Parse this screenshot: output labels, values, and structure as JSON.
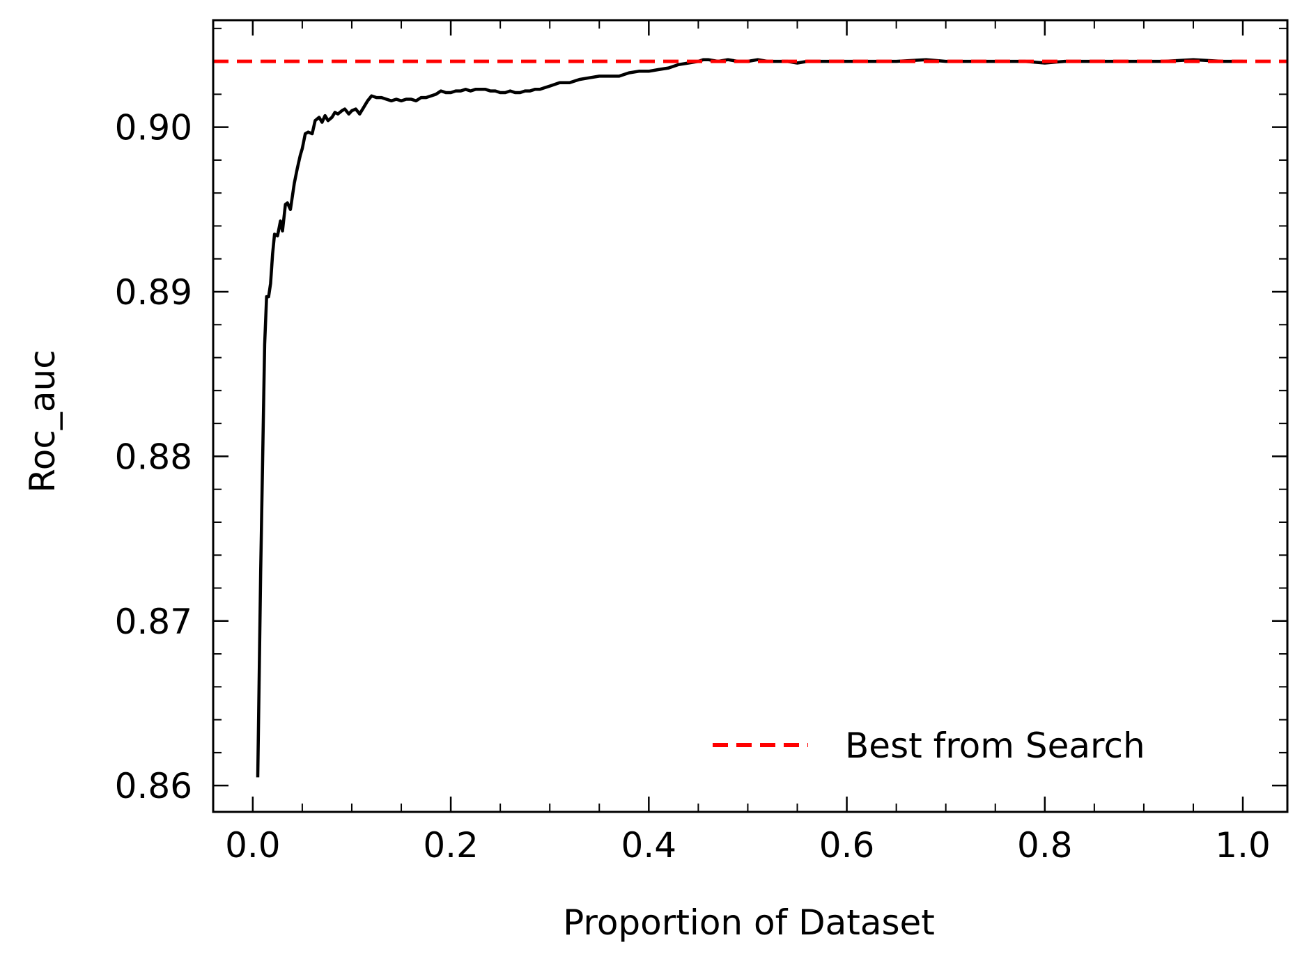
{
  "chart_data": {
    "type": "line",
    "xlabel": "Proportion of Dataset",
    "ylabel": "Roc_auc",
    "xlim": [
      -0.04,
      1.045
    ],
    "ylim": [
      0.8584,
      0.9065
    ],
    "xticks": [
      0.0,
      0.2,
      0.4,
      0.6,
      0.8,
      1.0
    ],
    "xtick_labels": [
      "0.0",
      "0.2",
      "0.4",
      "0.6",
      "0.8",
      "1.0"
    ],
    "yticks": [
      0.86,
      0.87,
      0.88,
      0.89,
      0.9
    ],
    "ytick_labels": [
      "0.86",
      "0.87",
      "0.88",
      "0.89",
      "0.90"
    ],
    "grid": false,
    "legend_position": "lower-right",
    "series": [
      {
        "kind": "line",
        "color": "#000000",
        "x": [
          0.005,
          0.008,
          0.012,
          0.014,
          0.016,
          0.018,
          0.02,
          0.022,
          0.025,
          0.028,
          0.03,
          0.033,
          0.035,
          0.038,
          0.04,
          0.042,
          0.045,
          0.048,
          0.05,
          0.053,
          0.056,
          0.06,
          0.063,
          0.067,
          0.07,
          0.073,
          0.076,
          0.08,
          0.083,
          0.086,
          0.09,
          0.093,
          0.097,
          0.1,
          0.104,
          0.108,
          0.112,
          0.116,
          0.12,
          0.125,
          0.13,
          0.135,
          0.14,
          0.145,
          0.15,
          0.155,
          0.16,
          0.165,
          0.17,
          0.175,
          0.18,
          0.185,
          0.19,
          0.195,
          0.2,
          0.205,
          0.21,
          0.215,
          0.22,
          0.225,
          0.23,
          0.235,
          0.24,
          0.245,
          0.25,
          0.255,
          0.26,
          0.265,
          0.27,
          0.275,
          0.28,
          0.285,
          0.29,
          0.295,
          0.3,
          0.31,
          0.32,
          0.33,
          0.34,
          0.35,
          0.36,
          0.37,
          0.38,
          0.39,
          0.4,
          0.41,
          0.42,
          0.43,
          0.44,
          0.45,
          0.455,
          0.46,
          0.47,
          0.48,
          0.49,
          0.5,
          0.51,
          0.52,
          0.53,
          0.54,
          0.55,
          0.56,
          0.58,
          0.6,
          0.62,
          0.65,
          0.68,
          0.7,
          0.72,
          0.75,
          0.78,
          0.8,
          0.82,
          0.85,
          0.88,
          0.9,
          0.92,
          0.95,
          0.98,
          1.0
        ],
        "y": [
          0.8605,
          0.873,
          0.8868,
          0.8897,
          0.8897,
          0.8905,
          0.8923,
          0.8935,
          0.8934,
          0.8943,
          0.8937,
          0.8953,
          0.8954,
          0.895,
          0.8958,
          0.8966,
          0.8975,
          0.8983,
          0.8987,
          0.8996,
          0.8997,
          0.8996,
          0.9004,
          0.9006,
          0.9003,
          0.9007,
          0.9004,
          0.9006,
          0.9009,
          0.9008,
          0.901,
          0.9011,
          0.9008,
          0.901,
          0.9011,
          0.9008,
          0.9012,
          0.9016,
          0.9019,
          0.9018,
          0.9018,
          0.9017,
          0.9016,
          0.9017,
          0.9016,
          0.9017,
          0.9017,
          0.9016,
          0.9018,
          0.9018,
          0.9019,
          0.902,
          0.9022,
          0.9021,
          0.9021,
          0.9022,
          0.9022,
          0.9023,
          0.9022,
          0.9023,
          0.9023,
          0.9023,
          0.9022,
          0.9022,
          0.9021,
          0.9021,
          0.9022,
          0.9021,
          0.9021,
          0.9022,
          0.9022,
          0.9023,
          0.9023,
          0.9024,
          0.9025,
          0.9027,
          0.9027,
          0.9029,
          0.903,
          0.9031,
          0.9031,
          0.9031,
          0.9033,
          0.9034,
          0.9034,
          0.9035,
          0.9036,
          0.9038,
          0.9039,
          0.904,
          0.9041,
          0.9041,
          0.904,
          0.9041,
          0.904,
          0.904,
          0.9041,
          0.904,
          0.904,
          0.904,
          0.9039,
          0.904,
          0.904,
          0.904,
          0.904,
          0.904,
          0.9041,
          0.904,
          0.904,
          0.904,
          0.904,
          0.9039,
          0.904,
          0.904,
          0.904,
          0.904,
          0.904,
          0.9041,
          0.904,
          0.904
        ]
      },
      {
        "kind": "hline",
        "name": "Best from Search",
        "color": "#ff0000",
        "dashed": true,
        "y": 0.904
      }
    ]
  }
}
